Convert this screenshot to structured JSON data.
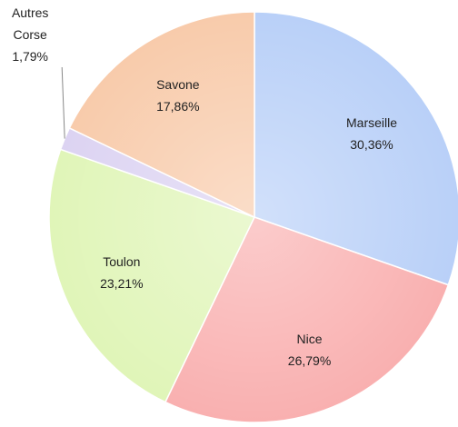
{
  "chart_data": {
    "type": "pie",
    "categories": [
      "Marseille",
      "Nice",
      "Toulon",
      "Autres Corse",
      "Savone"
    ],
    "values": [
      30.36,
      26.79,
      23.21,
      1.79,
      17.86
    ],
    "value_labels": [
      "30,36%",
      "26,79%",
      "23,21%",
      "1,79%",
      "17,86%"
    ],
    "colors": [
      "#b9d0f8",
      "#f9b0b0",
      "#e0f5b8",
      "#dcd3f2",
      "#f8cbab"
    ]
  }
}
